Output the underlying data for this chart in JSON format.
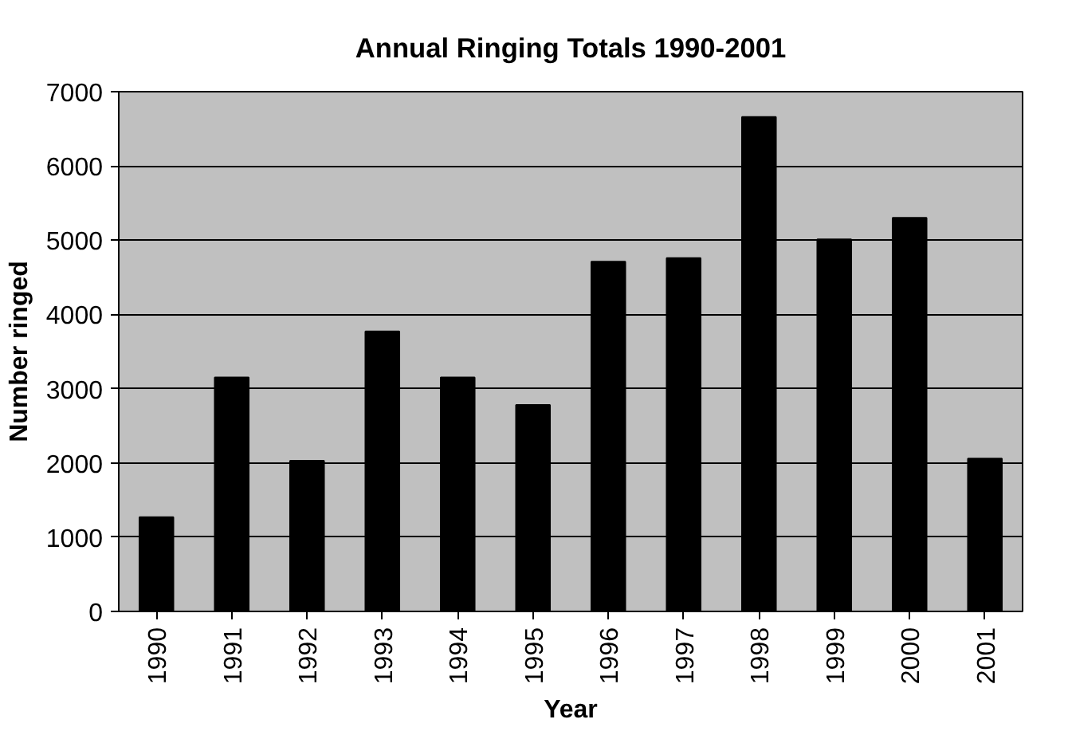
{
  "chart_data": {
    "type": "bar",
    "title": "Annual Ringing Totals 1990-2001",
    "xlabel": "Year",
    "ylabel": "Number ringed",
    "categories": [
      "1990",
      "1991",
      "1992",
      "1993",
      "1994",
      "1995",
      "1996",
      "1997",
      "1998",
      "1999",
      "2000",
      "2001"
    ],
    "values": [
      1270,
      3150,
      2030,
      3770,
      3150,
      2780,
      4710,
      4760,
      6660,
      5010,
      5300,
      2060
    ],
    "color": "#000000",
    "ylim": [
      0,
      7000
    ],
    "yticks": [
      0,
      1000,
      2000,
      3000,
      4000,
      5000,
      6000,
      7000
    ],
    "grid": "y"
  }
}
